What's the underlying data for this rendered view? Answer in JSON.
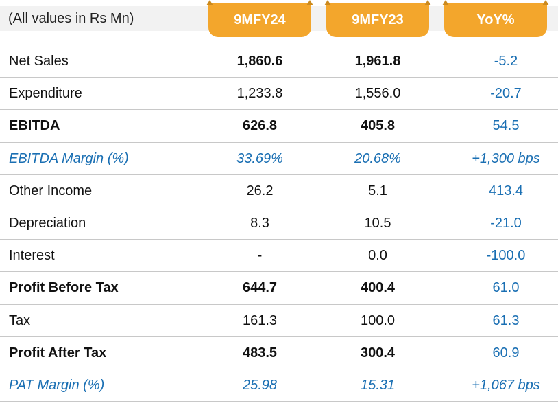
{
  "header": {
    "units_label": "(All values in Rs Mn)",
    "columns": [
      "9MFY24",
      "9MFY23",
      "YoY%"
    ]
  },
  "rows": [
    {
      "label": "Net Sales",
      "v1": "1,860.6",
      "v2": "1,961.8",
      "yoy": "-5.2"
    },
    {
      "label": "Expenditure",
      "v1": "1,233.8",
      "v2": "1,556.0",
      "yoy": "-20.7"
    },
    {
      "label": "EBITDA",
      "v1": "626.8",
      "v2": "405.8",
      "yoy": "54.5"
    },
    {
      "label": "EBITDA Margin (%)",
      "v1": "33.69%",
      "v2": "20.68%",
      "yoy": "+1,300 bps"
    },
    {
      "label": "Other Income",
      "v1": "26.2",
      "v2": "5.1",
      "yoy": "413.4"
    },
    {
      "label": "Depreciation",
      "v1": "8.3",
      "v2": "10.5",
      "yoy": "-21.0"
    },
    {
      "label": "Interest",
      "v1": "-",
      "v2": "0.0",
      "yoy": "-100.0"
    },
    {
      "label": "Profit Before Tax",
      "v1": "644.7",
      "v2": "400.4",
      "yoy": "61.0"
    },
    {
      "label": "Tax",
      "v1": "161.3",
      "v2": "100.0",
      "yoy": "61.3"
    },
    {
      "label": "Profit After Tax",
      "v1": "483.5",
      "v2": "300.4",
      "yoy": "60.9"
    },
    {
      "label": "PAT Margin (%)",
      "v1": "25.98",
      "v2": "15.31",
      "yoy": "+1,067 bps"
    }
  ],
  "colors": {
    "header_tab": "#f3a62c",
    "header_band": "#f2f2f2",
    "yoy_text": "#1a6fb3",
    "rule": "#c8c8c8"
  }
}
